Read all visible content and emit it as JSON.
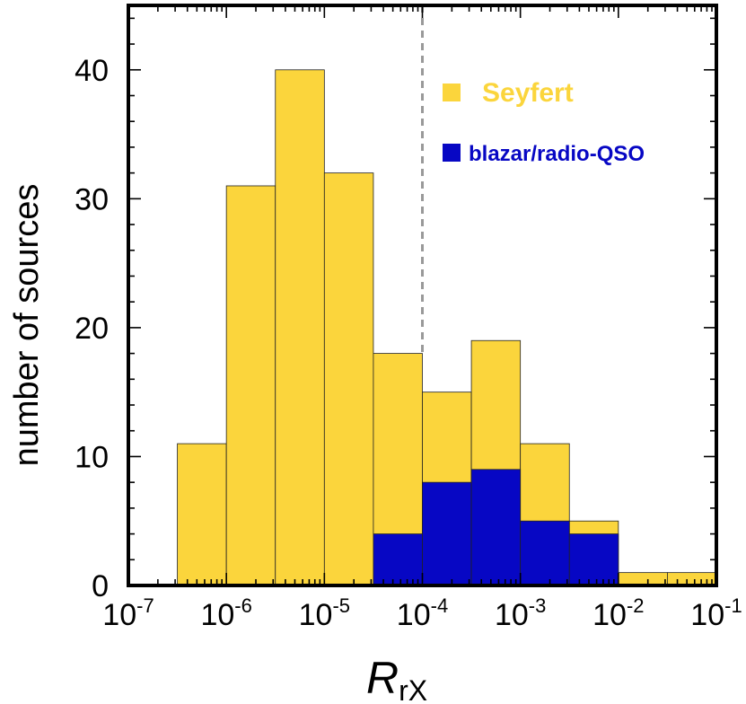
{
  "chart_data": {
    "type": "bar",
    "stacked": false,
    "x_scale": "log",
    "xlim": [
      1e-07,
      0.1
    ],
    "ylim": [
      0,
      45
    ],
    "xlabel": "R",
    "xlabel_subscript": "rX",
    "ylabel": "number of sources",
    "x_ticks": [
      {
        "base": "10",
        "exp": "-7",
        "value": 1e-07
      },
      {
        "base": "10",
        "exp": "-6",
        "value": 1e-06
      },
      {
        "base": "10",
        "exp": "-5",
        "value": 1e-05
      },
      {
        "base": "10",
        "exp": "-4",
        "value": 0.0001
      },
      {
        "base": "10",
        "exp": "-3",
        "value": 0.001
      },
      {
        "base": "10",
        "exp": "-2",
        "value": 0.01
      },
      {
        "base": "10",
        "exp": "-1",
        "value": 0.1
      }
    ],
    "y_ticks": [
      {
        "label": "0",
        "value": 0
      },
      {
        "label": "10",
        "value": 10
      },
      {
        "label": "20",
        "value": 20
      },
      {
        "label": "30",
        "value": 30
      },
      {
        "label": "40",
        "value": 40
      }
    ],
    "bin_edges_log10": [
      -6.5,
      -6,
      -5.5,
      -5,
      -4.5,
      -4,
      -3.5,
      -3,
      -2.5,
      -2,
      -1.5,
      -1
    ],
    "series": [
      {
        "name": "Seyfert",
        "color": "#FBD53C",
        "values": [
          11,
          31,
          40,
          32,
          18,
          15,
          19,
          11,
          5,
          1,
          1
        ]
      },
      {
        "name": "blazar/radio-QSO",
        "color": "#0707C4",
        "values": [
          0,
          0,
          0,
          0,
          4,
          8,
          9,
          5,
          4,
          0,
          0
        ]
      }
    ],
    "reference_line": {
      "x": 0.0001,
      "style": "dashed",
      "color": "#999999"
    },
    "legend_placement": "top-right",
    "grid": false
  }
}
